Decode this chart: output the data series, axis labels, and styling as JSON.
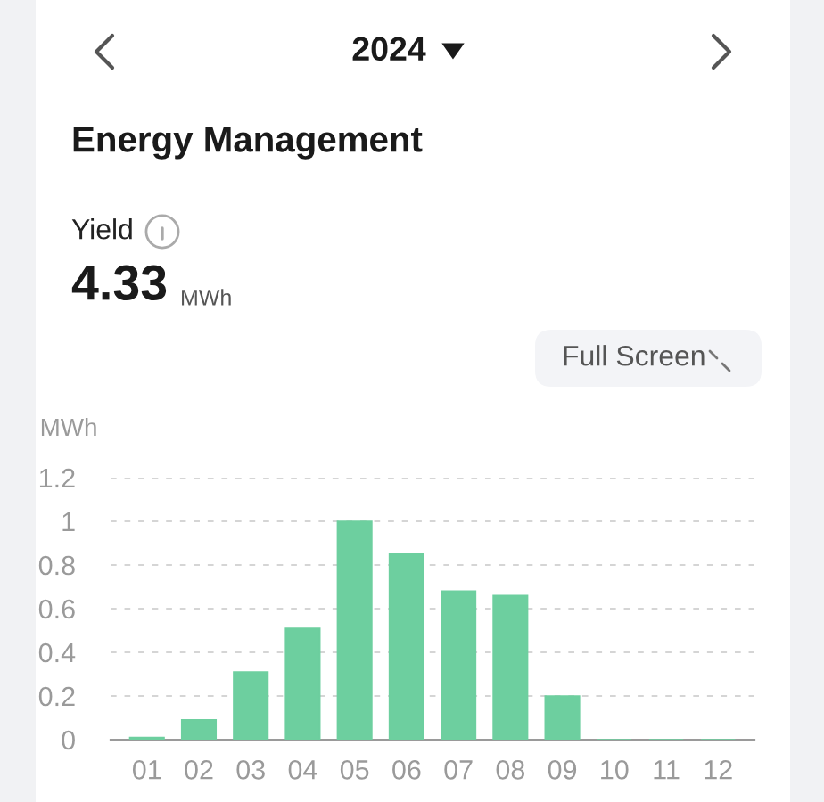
{
  "chart_data": {
    "type": "bar",
    "title": "Energy Management",
    "ylabel": "MWh",
    "annotations": [
      "2024",
      "Yield",
      "4.33",
      "MWh",
      "Full Screen"
    ],
    "categories": [
      "01",
      "02",
      "03",
      "04",
      "05",
      "06",
      "07",
      "08",
      "09",
      "10",
      "11",
      "12"
    ],
    "values": [
      0.01,
      0.09,
      0.31,
      0.51,
      1.0,
      0.85,
      0.68,
      0.66,
      0.2,
      0,
      0,
      0
    ],
    "color": "#6dcf9f",
    "ylim": [
      0,
      1.2
    ],
    "yticks": [
      0,
      0.2,
      0.4,
      0.6,
      0.8,
      1,
      1.2
    ],
    "grid": "y",
    "legend": false
  }
}
